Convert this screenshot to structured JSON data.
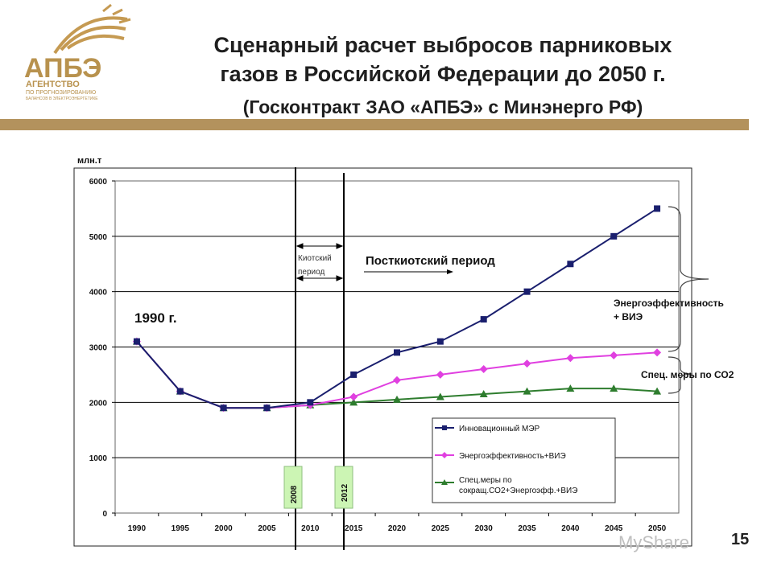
{
  "logo": {
    "acronym": "АПБЭ",
    "line1": "АГЕНТСТВО",
    "line2": "ПО ПРОГНОЗИРОВАНИЮ",
    "line3": "БАЛАНСОВ В ЭЛЕКТРОЭНЕРГЕТИКЕ",
    "color": "#b8924e"
  },
  "header": {
    "title_line1": "Сценарный расчет выбросов парниковых",
    "title_line2": "газов в Российской Федерации  до 2050 г.",
    "subtitle": "(Госконтракт ЗАО «АПБЭ» с Минэнерго РФ)"
  },
  "chart_data": {
    "type": "line",
    "ylabel": "млн.т",
    "ylim": [
      0,
      6000
    ],
    "yticks": [
      "0",
      "1000",
      "2000",
      "3000",
      "4000",
      "5000",
      "6000"
    ],
    "categories": [
      "1990",
      "1995",
      "2000",
      "2005",
      "2010",
      "2015",
      "2020",
      "2025",
      "2030",
      "2035",
      "2040",
      "2045",
      "2050"
    ],
    "grid": "horizontal",
    "legend_position": "bottom-right",
    "series": [
      {
        "name": "Инновационный МЭР",
        "color": "#1a1f6e",
        "marker": "square",
        "values": [
          3100,
          2200,
          1900,
          1900,
          2000,
          2500,
          2900,
          3100,
          3500,
          4000,
          4500,
          5000,
          5500
        ]
      },
      {
        "name": "Энергоэффективность+ВИЭ",
        "color": "#e040e0",
        "marker": "diamond",
        "values": [
          3100,
          2200,
          1900,
          1900,
          1950,
          2100,
          2400,
          2500,
          2600,
          2700,
          2800,
          2850,
          2900
        ]
      },
      {
        "name": "Спец.меры по сокращ.СО2+Энергоэфф.+ВИЭ",
        "color": "#2e7d2e",
        "marker": "triangle",
        "values": [
          3100,
          2200,
          1900,
          1900,
          1950,
          2000,
          2050,
          2100,
          2150,
          2200,
          2250,
          2250,
          2200
        ]
      }
    ],
    "annotations": {
      "year_1990": "1990 г.",
      "kyoto": "Киотский период",
      "post_kyoto": "Посткиотский период",
      "marker_2008": "2008",
      "marker_2012": "2012",
      "brace_upper": "Энергоэффективность + ВИЭ",
      "brace_lower": "Спец. меры по СО2"
    }
  },
  "footer": {
    "page_number": "15",
    "watermark": "MyShare"
  }
}
